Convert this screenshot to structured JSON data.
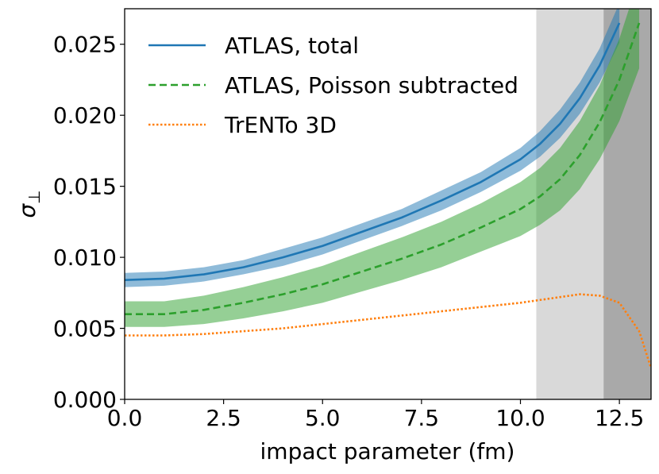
{
  "chart_data": {
    "type": "line",
    "xlabel": "impact parameter (fm)",
    "ylabel": "σ",
    "ylabel_subscript": "⊥",
    "xlim": [
      0.0,
      13.3
    ],
    "ylim": [
      0.0,
      0.0275
    ],
    "xticks": [
      "0.0",
      "2.5",
      "5.0",
      "7.5",
      "10.0",
      "12.5"
    ],
    "yticks": [
      "0.000",
      "0.005",
      "0.010",
      "0.015",
      "0.020",
      "0.025"
    ],
    "x": [
      0,
      1,
      2,
      3,
      4,
      5,
      6,
      7,
      8,
      9,
      10,
      10.5,
      11,
      11.5,
      12,
      12.5,
      13,
      13.3
    ],
    "shaded_regions": [
      {
        "x": [
          10.4,
          12.1
        ],
        "color": "#d9d9d9"
      },
      {
        "x": [
          12.1,
          13.3
        ],
        "color": "#a9a9a9"
      }
    ],
    "series": [
      {
        "name": "ATLAS, total",
        "style": "solid",
        "color": "#1f77b4",
        "band_color": "#1f77b4",
        "values": [
          0.0084,
          0.0085,
          0.0088,
          0.0093,
          0.01,
          0.0108,
          0.0118,
          0.0128,
          0.014,
          0.0153,
          0.0169,
          0.018,
          0.0194,
          0.0212,
          0.0235,
          0.0265,
          null,
          null
        ],
        "band_halfwidth": [
          0.0005,
          0.0005,
          0.0005,
          0.0005,
          0.0006,
          0.0006,
          0.0006,
          0.0006,
          0.0007,
          0.0007,
          0.0008,
          0.0009,
          0.001,
          0.0011,
          0.0012,
          0.0014,
          null,
          null
        ]
      },
      {
        "name": "ATLAS, Poisson subtracted",
        "style": "dashed",
        "color": "#2ca02c",
        "band_color": "#2ca02c",
        "values": [
          0.006,
          0.006,
          0.0063,
          0.0068,
          0.0074,
          0.0081,
          0.009,
          0.0099,
          0.0109,
          0.0121,
          0.0134,
          0.0143,
          0.0155,
          0.0172,
          0.0195,
          0.0225,
          0.0265,
          null
        ],
        "band_halfwidth": [
          0.0009,
          0.0009,
          0.001,
          0.0011,
          0.0012,
          0.0013,
          0.0014,
          0.0015,
          0.0016,
          0.0017,
          0.0019,
          0.002,
          0.0022,
          0.0024,
          0.0026,
          0.0029,
          0.0032,
          null
        ]
      },
      {
        "name": "TrENTo 3D",
        "style": "dotted",
        "color": "#ff7f0e",
        "values": [
          0.0045,
          0.0045,
          0.0046,
          0.0048,
          0.005,
          0.0053,
          0.0056,
          0.0059,
          0.0062,
          0.0065,
          0.0068,
          0.007,
          0.0072,
          0.0074,
          0.0073,
          0.0068,
          0.0048,
          0.0022
        ]
      }
    ],
    "legend_location": "upper-left",
    "grid": false
  }
}
